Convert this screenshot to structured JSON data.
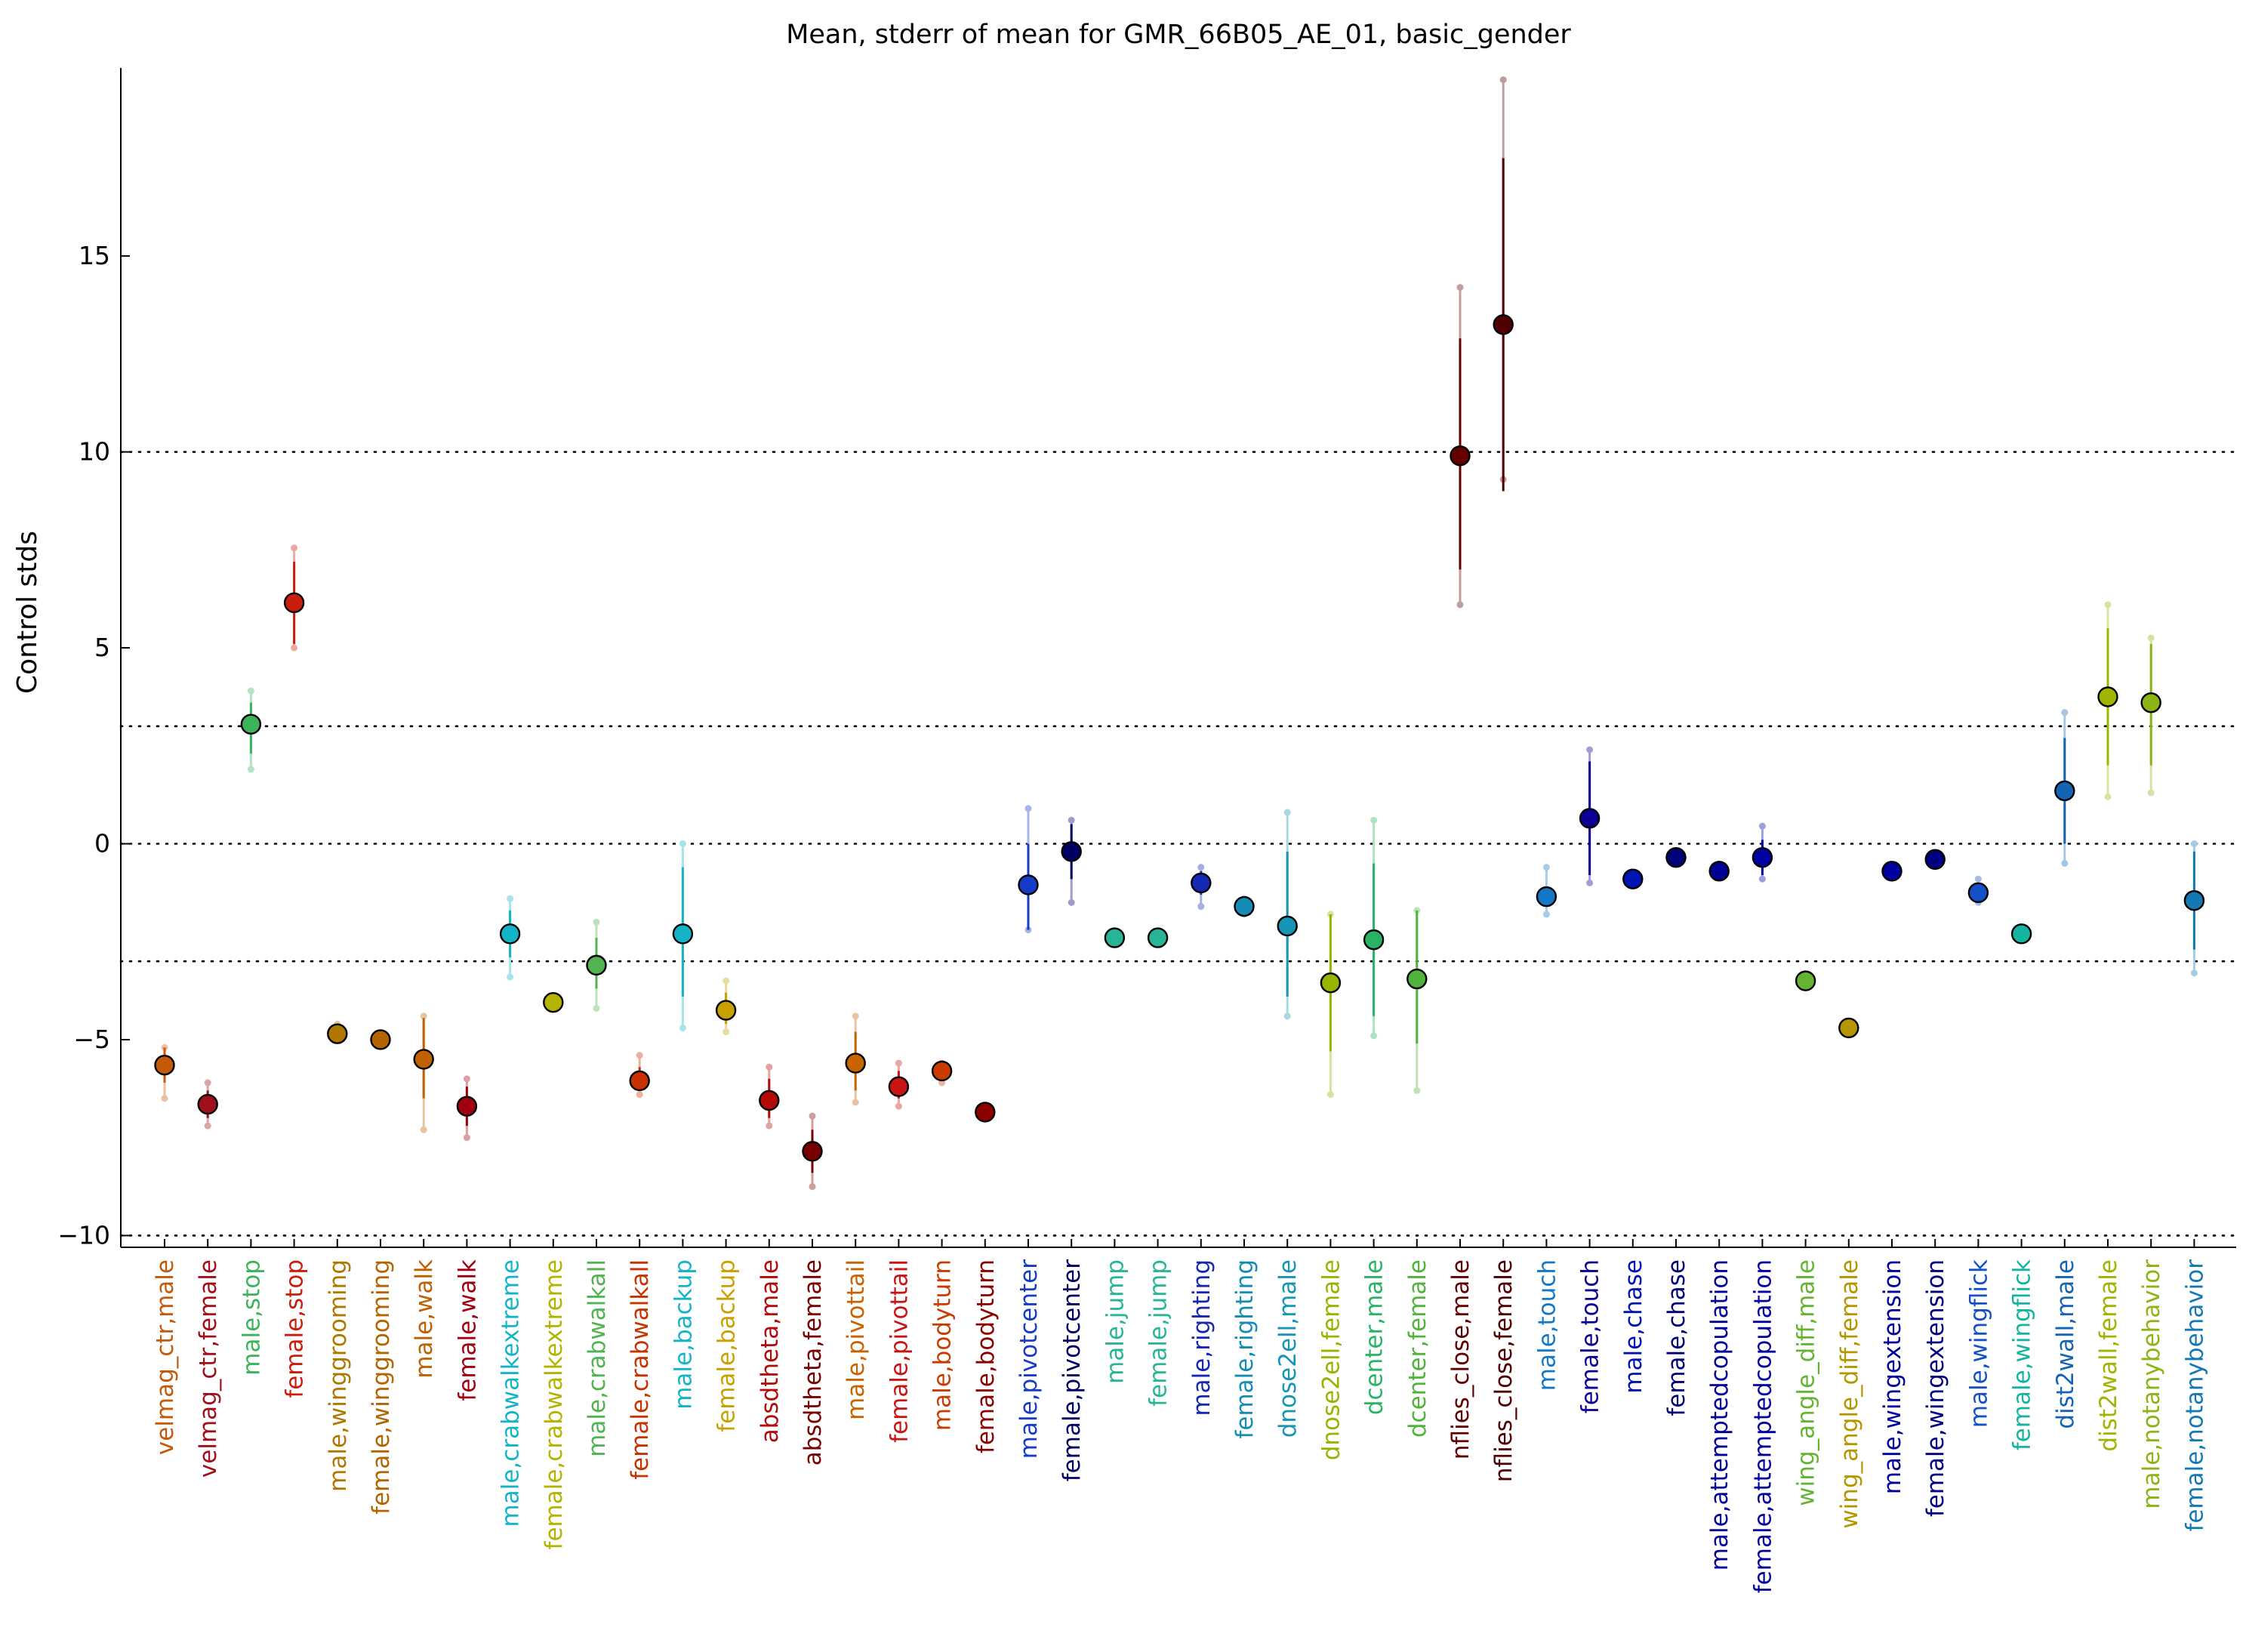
{
  "chart_data": {
    "type": "scatter",
    "title": "Mean, stderr of mean for GMR_66B05_AE_01, basic_gender",
    "xlabel": "",
    "ylabel": "Control stds",
    "ylim": [
      -10.3,
      19.8
    ],
    "yticks": [
      -10,
      -5,
      0,
      5,
      10,
      15
    ],
    "ytick_labels": [
      "−10",
      "−5",
      "0",
      "5",
      "10",
      "15"
    ],
    "reference_lines": [
      -10,
      -3,
      0,
      3,
      10
    ],
    "grid": false,
    "legend": "none",
    "points": [
      {
        "label": "velmag_ctr,male",
        "color": "#c45a0a",
        "mean": -5.65,
        "err_lo": -6.1,
        "err_hi": -5.2,
        "range_lo": -6.5,
        "range_hi": -5.2
      },
      {
        "label": "velmag_ctr,female",
        "color": "#a0101a",
        "mean": -6.65,
        "err_lo": -7.0,
        "err_hi": -6.3,
        "range_lo": -7.2,
        "range_hi": -6.1
      },
      {
        "label": "male,stop",
        "color": "#3cb45a",
        "mean": 3.05,
        "err_lo": 2.3,
        "err_hi": 3.6,
        "range_lo": 1.9,
        "range_hi": 3.9
      },
      {
        "label": "female,stop",
        "color": "#c81e0a",
        "mean": 6.15,
        "err_lo": 5.1,
        "err_hi": 7.2,
        "range_lo": 5.0,
        "range_hi": 7.55
      },
      {
        "label": "male,winggrooming",
        "color": "#b07800",
        "mean": -4.85,
        "err_lo": -5.0,
        "err_hi": -4.7,
        "range_lo": -5.0,
        "range_hi": -4.6
      },
      {
        "label": "female,winggrooming",
        "color": "#b46400",
        "mean": -5.0,
        "err_lo": -5.1,
        "err_hi": -4.9,
        "range_lo": -5.15,
        "range_hi": -4.85
      },
      {
        "label": "male,walk",
        "color": "#c06000",
        "mean": -5.5,
        "err_lo": -6.5,
        "err_hi": -4.45,
        "range_lo": -7.3,
        "range_hi": -4.4
      },
      {
        "label": "female,walk",
        "color": "#a00010",
        "mean": -6.7,
        "err_lo": -7.2,
        "err_hi": -6.2,
        "range_lo": -7.5,
        "range_hi": -6.0
      },
      {
        "label": "male,crabwalkextreme",
        "color": "#14b4c8",
        "mean": -2.3,
        "err_lo": -2.9,
        "err_hi": -1.7,
        "range_lo": -3.4,
        "range_hi": -1.4
      },
      {
        "label": "female,crabwalkextreme",
        "color": "#b4b400",
        "mean": -4.05,
        "err_lo": -4.15,
        "err_hi": -3.95,
        "range_lo": -4.2,
        "range_hi": -3.9
      },
      {
        "label": "male,crabwalkall",
        "color": "#50b450",
        "mean": -3.1,
        "err_lo": -3.7,
        "err_hi": -2.4,
        "range_lo": -4.2,
        "range_hi": -2.0
      },
      {
        "label": "female,crabwalkall",
        "color": "#c83200",
        "mean": -6.05,
        "err_lo": -6.3,
        "err_hi": -5.7,
        "range_lo": -6.4,
        "range_hi": -5.4
      },
      {
        "label": "male,backup",
        "color": "#14b4c8",
        "mean": -2.3,
        "err_lo": -3.9,
        "err_hi": -0.6,
        "range_lo": -4.7,
        "range_hi": 0.0
      },
      {
        "label": "female,backup",
        "color": "#c8a000",
        "mean": -4.25,
        "err_lo": -4.6,
        "err_hi": -3.8,
        "range_lo": -4.8,
        "range_hi": -3.5
      },
      {
        "label": "absdtheta,male",
        "color": "#b40a0a",
        "mean": -6.55,
        "err_lo": -7.0,
        "err_hi": -6.0,
        "range_lo": -7.2,
        "range_hi": -5.7
      },
      {
        "label": "absdtheta,female",
        "color": "#780000",
        "mean": -7.85,
        "err_lo": -8.4,
        "err_hi": -7.3,
        "range_lo": -8.75,
        "range_hi": -6.95
      },
      {
        "label": "male,pivottail",
        "color": "#c86400",
        "mean": -5.6,
        "err_lo": -6.3,
        "err_hi": -4.8,
        "range_lo": -6.6,
        "range_hi": -4.4
      },
      {
        "label": "female,pivottail",
        "color": "#c81414",
        "mean": -6.2,
        "err_lo": -6.5,
        "err_hi": -5.8,
        "range_lo": -6.7,
        "range_hi": -5.6
      },
      {
        "label": "male,bodyturn",
        "color": "#c83c00",
        "mean": -5.8,
        "err_lo": -5.9,
        "err_hi": -5.7,
        "range_lo": -6.1,
        "range_hi": -5.6
      },
      {
        "label": "female,bodyturn",
        "color": "#8c0000",
        "mean": -6.85,
        "err_lo": -6.9,
        "err_hi": -6.8,
        "range_lo": -6.95,
        "range_hi": -6.75
      },
      {
        "label": "male,pivotcenter",
        "color": "#143cc8",
        "mean": -1.05,
        "err_lo": -2.2,
        "err_hi": 0.0,
        "range_lo": -2.2,
        "range_hi": 0.9
      },
      {
        "label": "female,pivotcenter",
        "color": "#000064",
        "mean": -0.2,
        "err_lo": -0.9,
        "err_hi": 0.5,
        "range_lo": -1.5,
        "range_hi": 0.6
      },
      {
        "label": "male,jump",
        "color": "#28b496",
        "mean": -2.4,
        "err_lo": -2.45,
        "err_hi": -2.35,
        "range_lo": -2.5,
        "range_hi": -2.3
      },
      {
        "label": "female,jump",
        "color": "#28b496",
        "mean": -2.4,
        "err_lo": -2.45,
        "err_hi": -2.35,
        "range_lo": -2.5,
        "range_hi": -2.3
      },
      {
        "label": "male,righting",
        "color": "#1428b4",
        "mean": -1.0,
        "err_lo": -1.3,
        "err_hi": -0.7,
        "range_lo": -1.6,
        "range_hi": -0.6
      },
      {
        "label": "female,righting",
        "color": "#148cb4",
        "mean": -1.6,
        "err_lo": -1.7,
        "err_hi": -1.5,
        "range_lo": -1.8,
        "range_hi": -1.4
      },
      {
        "label": "dnose2ell,male",
        "color": "#1496b4",
        "mean": -2.1,
        "err_lo": -3.9,
        "err_hi": -0.2,
        "range_lo": -4.4,
        "range_hi": 0.8
      },
      {
        "label": "dnose2ell,female",
        "color": "#96b400",
        "mean": -3.55,
        "err_lo": -5.3,
        "err_hi": -1.8,
        "range_lo": -6.4,
        "range_hi": -1.8
      },
      {
        "label": "dcenter,male",
        "color": "#28b464",
        "mean": -2.45,
        "err_lo": -4.4,
        "err_hi": -0.5,
        "range_lo": -4.9,
        "range_hi": 0.6
      },
      {
        "label": "dcenter,female",
        "color": "#50b43c",
        "mean": -3.45,
        "err_lo": -5.1,
        "err_hi": -1.7,
        "range_lo": -6.3,
        "range_hi": -1.7
      },
      {
        "label": "nflies_close,male",
        "color": "#640000",
        "mean": 9.9,
        "err_lo": 7.0,
        "err_hi": 12.9,
        "range_lo": 6.1,
        "range_hi": 14.2
      },
      {
        "label": "nflies_close,female",
        "color": "#500000",
        "mean": 13.25,
        "err_lo": 9.0,
        "err_hi": 17.5,
        "range_lo": 9.3,
        "range_hi": 19.5
      },
      {
        "label": "male,touch",
        "color": "#1478c8",
        "mean": -1.35,
        "err_lo": -1.6,
        "err_hi": -1.1,
        "range_lo": -1.8,
        "range_hi": -0.6
      },
      {
        "label": "female,touch",
        "color": "#0a0096",
        "mean": 0.65,
        "err_lo": -0.8,
        "err_hi": 2.1,
        "range_lo": -1.0,
        "range_hi": 2.4
      },
      {
        "label": "male,chase",
        "color": "#0014b4",
        "mean": -0.9,
        "err_lo": -0.95,
        "err_hi": -0.85,
        "range_lo": -1.0,
        "range_hi": -0.8
      },
      {
        "label": "female,chase",
        "color": "#000078",
        "mean": -0.35,
        "err_lo": -0.4,
        "err_hi": -0.3,
        "range_lo": -0.45,
        "range_hi": -0.25
      },
      {
        "label": "male,attemptedcopulation",
        "color": "#000096",
        "mean": -0.7,
        "err_lo": -0.75,
        "err_hi": -0.65,
        "range_lo": -0.8,
        "range_hi": -0.6
      },
      {
        "label": "female,attemptedcopulation",
        "color": "#0000a0",
        "mean": -0.35,
        "err_lo": -0.8,
        "err_hi": 0.1,
        "range_lo": -0.9,
        "range_hi": 0.45
      },
      {
        "label": "wing_angle_diff,male",
        "color": "#64b432",
        "mean": -3.5,
        "err_lo": -3.55,
        "err_hi": -3.45,
        "range_lo": -3.6,
        "range_hi": -3.4
      },
      {
        "label": "wing_angle_diff,female",
        "color": "#b49600",
        "mean": -4.7,
        "err_lo": -4.75,
        "err_hi": -4.65,
        "range_lo": -4.8,
        "range_hi": -4.6
      },
      {
        "label": "male,wingextension",
        "color": "#0000a0",
        "mean": -0.7,
        "err_lo": -0.75,
        "err_hi": -0.65,
        "range_lo": -0.8,
        "range_hi": -0.6
      },
      {
        "label": "female,wingextension",
        "color": "#000080",
        "mean": -0.4,
        "err_lo": -0.45,
        "err_hi": -0.35,
        "range_lo": -0.5,
        "range_hi": -0.3
      },
      {
        "label": "male,wingflick",
        "color": "#1450c8",
        "mean": -1.25,
        "err_lo": -1.4,
        "err_hi": -1.05,
        "range_lo": -1.5,
        "range_hi": -0.9
      },
      {
        "label": "female,wingflick",
        "color": "#14b4a0",
        "mean": -2.3,
        "err_lo": -2.35,
        "err_hi": -2.25,
        "range_lo": -2.4,
        "range_hi": -2.2
      },
      {
        "label": "dist2wall,male",
        "color": "#1464b4",
        "mean": 1.35,
        "err_lo": 0.0,
        "err_hi": 2.7,
        "range_lo": -0.5,
        "range_hi": 3.35
      },
      {
        "label": "dist2wall,female",
        "color": "#a0b400",
        "mean": 3.75,
        "err_lo": 2.0,
        "err_hi": 5.5,
        "range_lo": 1.2,
        "range_hi": 6.1
      },
      {
        "label": "male,notanybehavior",
        "color": "#8cb414",
        "mean": 3.6,
        "err_lo": 2.0,
        "err_hi": 5.1,
        "range_lo": 1.3,
        "range_hi": 5.25
      },
      {
        "label": "female,notanybehavior",
        "color": "#1478b4",
        "mean": -1.45,
        "err_lo": -2.7,
        "err_hi": -0.2,
        "range_lo": -3.3,
        "range_hi": 0.0
      }
    ]
  }
}
